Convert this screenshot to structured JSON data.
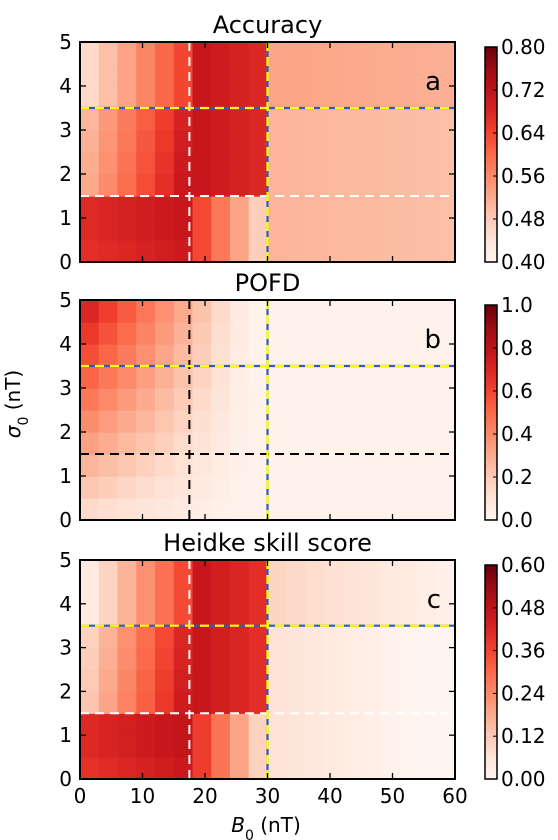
{
  "figure": {
    "xlabel": "B_0 (nT)",
    "ylabel": "σ_0 (nT)"
  },
  "chart_data": [
    {
      "type": "heatmap",
      "title": "Accuracy",
      "panel_letter": "a",
      "x_ticks": [
        0,
        10,
        20,
        30,
        40,
        50,
        60
      ],
      "y_ticks": [
        0,
        1,
        2,
        3,
        4,
        5
      ],
      "xlim": [
        0,
        60
      ],
      "ylim": [
        0,
        5
      ],
      "colorbar": {
        "min": 0.4,
        "max": 0.8,
        "ticks": [
          "0.40",
          "0.48",
          "0.56",
          "0.64",
          "0.72",
          "0.80"
        ]
      },
      "crosshair_white": {
        "x": 17.5,
        "y": 1.5
      },
      "crosshair_yellow": {
        "x": 30,
        "y": 3.5
      },
      "grid_cells": {
        "nx": 20,
        "ny": 10,
        "value_range": [
          0.4,
          0.8
        ]
      }
    },
    {
      "type": "heatmap",
      "title": "POFD",
      "panel_letter": "b",
      "x_ticks": [
        0,
        10,
        20,
        30,
        40,
        50,
        60
      ],
      "y_ticks": [
        0,
        1,
        2,
        3,
        4,
        5
      ],
      "xlim": [
        0,
        60
      ],
      "ylim": [
        0,
        5
      ],
      "colorbar": {
        "min": 0.0,
        "max": 1.0,
        "ticks": [
          "0.0",
          "0.2",
          "0.4",
          "0.6",
          "0.8",
          "1.0"
        ]
      },
      "crosshair_black": {
        "x": 17.5,
        "y": 1.5
      },
      "crosshair_yellow": {
        "x": 30,
        "y": 3.5
      },
      "grid_cells": {
        "nx": 20,
        "ny": 10,
        "value_range": [
          0.0,
          1.0
        ]
      }
    },
    {
      "type": "heatmap",
      "title": "Heidke skill score",
      "panel_letter": "c",
      "x_ticks": [
        0,
        10,
        20,
        30,
        40,
        50,
        60
      ],
      "y_ticks": [
        0,
        1,
        2,
        3,
        4,
        5
      ],
      "xlim": [
        0,
        60
      ],
      "ylim": [
        0,
        5
      ],
      "colorbar": {
        "min": 0.0,
        "max": 0.6,
        "ticks": [
          "0.00",
          "0.12",
          "0.24",
          "0.36",
          "0.48",
          "0.60"
        ]
      },
      "crosshair_white": {
        "x": 17.5,
        "y": 1.5
      },
      "crosshair_yellow": {
        "x": 30,
        "y": 3.5
      },
      "grid_cells": {
        "nx": 20,
        "ny": 10,
        "value_range": [
          0.0,
          0.6
        ]
      }
    }
  ]
}
